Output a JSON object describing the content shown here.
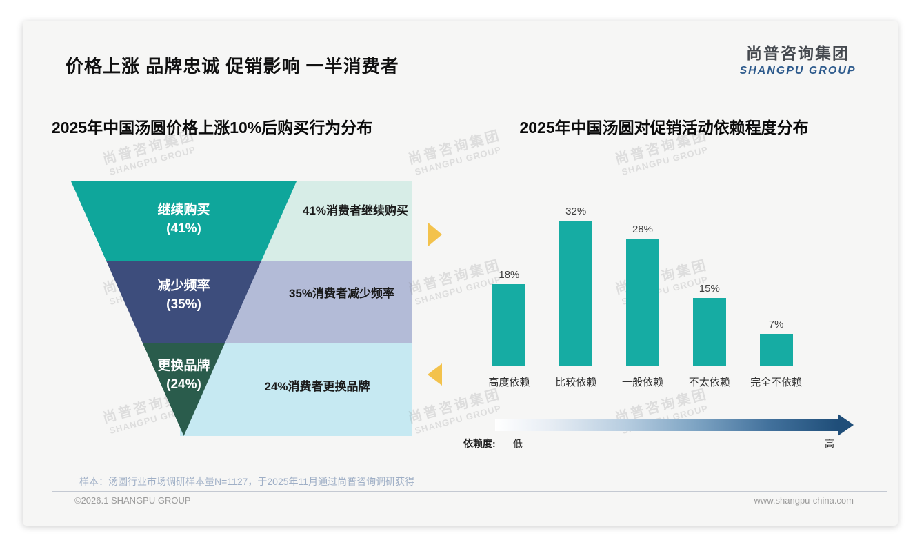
{
  "slide": {
    "title": "价格上涨 品牌忠诚 促销影响 一半消费者",
    "logo": {
      "cn": "尚普咨询集团",
      "en": "SHANGPU GROUP"
    },
    "watermark": {
      "cn": "尚普咨询集团",
      "en": "SHANGPU GROUP"
    },
    "sample_note": "样本：汤圆行业市场调研样本量N=1127，于2025年11月通过尚普咨询调研获得",
    "footer": {
      "left": "©2026.1 SHANGPU GROUP",
      "right": "www.shangpu-china.com"
    }
  },
  "colors": {
    "card_bg": "#F6F6F5",
    "funnel_teal": "#0FA69B",
    "funnel_indigo": "#3D4D7C",
    "funnel_green": "#2A5C4C",
    "funnel_teal_light": "#D7EDE7",
    "funnel_indigo_light": "#B3BBD7",
    "funnel_green_light": "#C6E9F2",
    "bar_teal": "#16ACA3",
    "accent_yellow": "#F3C24C",
    "logo_blue": "#2D5A8C",
    "gradient_dark_blue": "#1F4E79",
    "note_blue_gray": "#9FAFC6"
  },
  "chart_data": [
    {
      "type": "funnel",
      "title": "2025年中国汤圆价格上涨10%后购买行为分布",
      "segments": [
        {
          "label": "继续购买",
          "pct": 41,
          "pct_text": "(41%)",
          "annotation": "41%消费者继续购买",
          "color": "#0FA69B",
          "bg_color": "#D7EDE7"
        },
        {
          "label": "减少频率",
          "pct": 35,
          "pct_text": "(35%)",
          "annotation": "35%消费者减少频率",
          "color": "#3D4D7C",
          "bg_color": "#B3BBD7"
        },
        {
          "label": "更换品牌",
          "pct": 24,
          "pct_text": "(24%)",
          "annotation": "24%消费者更换品牌",
          "color": "#2A5C4C",
          "bg_color": "#C6E9F2"
        }
      ]
    },
    {
      "type": "bar",
      "title": "2025年中国汤圆对促销活动依赖程度分布",
      "categories": [
        "高度依赖",
        "比较依赖",
        "一般依赖",
        "不太依赖",
        "完全不依赖"
      ],
      "values": [
        18,
        32,
        28,
        15,
        7
      ],
      "value_labels": [
        "18%",
        "32%",
        "28%",
        "15%",
        "7%"
      ],
      "unit": "%",
      "ylim": [
        0,
        38
      ],
      "bar_color": "#16ACA3",
      "legend": "none",
      "dependency_axis": {
        "label": "依赖度:",
        "low": "低",
        "high": "高"
      }
    }
  ]
}
